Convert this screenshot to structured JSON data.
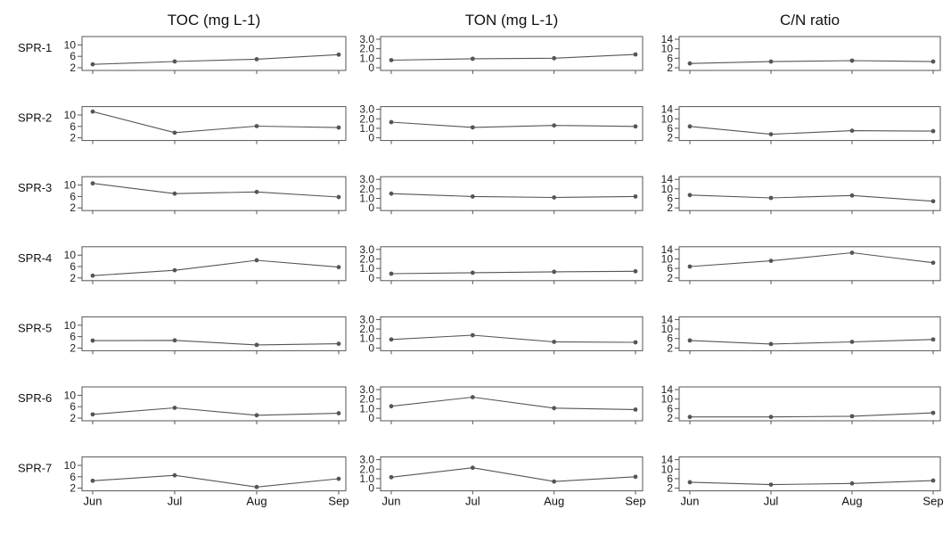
{
  "chart_data": {
    "type": "line",
    "layout": "small-multiples",
    "x": [
      "Jun",
      "Jul",
      "Aug",
      "Sep"
    ],
    "columns": [
      {
        "key": "toc",
        "title": "TOC (mg L-1)",
        "ylim": [
          2,
          12
        ],
        "yticks": [
          2,
          6,
          10
        ],
        "ytick_labels": [
          "2",
          "6",
          "10"
        ]
      },
      {
        "key": "ton",
        "title": "TON (mg L-1)",
        "ylim": [
          0,
          3
        ],
        "yticks": [
          0,
          1,
          2,
          3
        ],
        "ytick_labels": [
          "0",
          "1.0",
          "2.0",
          "3.0"
        ]
      },
      {
        "key": "cn",
        "title": "C/N ratio",
        "ylim": [
          2,
          14
        ],
        "yticks": [
          2,
          6,
          10,
          14
        ],
        "ytick_labels": [
          "2",
          "6",
          "10",
          "14"
        ]
      }
    ],
    "rows": [
      {
        "label": "SPR-1",
        "toc": [
          3.2,
          4.2,
          5.0,
          6.6
        ],
        "ton": [
          0.8,
          0.95,
          1.0,
          1.4
        ],
        "cn": [
          3.8,
          4.6,
          5.0,
          4.6
        ]
      },
      {
        "label": "SPR-2",
        "toc": [
          11.2,
          3.8,
          6.1,
          5.6
        ],
        "ton": [
          1.65,
          1.1,
          1.3,
          1.2
        ],
        "cn": [
          6.8,
          3.5,
          5.0,
          4.8
        ]
      },
      {
        "label": "SPR-3",
        "toc": [
          10.6,
          7.0,
          7.6,
          5.8
        ],
        "ton": [
          1.5,
          1.2,
          1.1,
          1.2
        ],
        "cn": [
          7.4,
          6.2,
          7.2,
          4.8
        ]
      },
      {
        "label": "SPR-4",
        "toc": [
          2.8,
          4.7,
          8.2,
          5.8
        ],
        "ton": [
          0.45,
          0.55,
          0.65,
          0.7
        ],
        "cn": [
          6.8,
          9.2,
          12.6,
          8.4
        ]
      },
      {
        "label": "SPR-5",
        "toc": [
          4.6,
          4.7,
          3.1,
          3.5
        ],
        "ton": [
          0.9,
          1.35,
          0.65,
          0.6
        ],
        "cn": [
          5.2,
          3.7,
          4.6,
          5.6
        ]
      },
      {
        "label": "SPR-6",
        "toc": [
          3.3,
          5.6,
          3.0,
          3.7
        ],
        "ton": [
          1.25,
          2.2,
          1.05,
          0.9
        ],
        "cn": [
          2.5,
          2.5,
          2.8,
          4.2
        ]
      },
      {
        "label": "SPR-7",
        "toc": [
          4.6,
          6.5,
          2.4,
          5.3
        ],
        "ton": [
          1.15,
          2.15,
          0.7,
          1.2
        ],
        "cn": [
          4.5,
          3.5,
          4.0,
          5.2
        ]
      }
    ],
    "grid": false,
    "legend": "none"
  },
  "colors": {
    "line": "#555555",
    "frame": "#555555",
    "text": "#111111"
  }
}
